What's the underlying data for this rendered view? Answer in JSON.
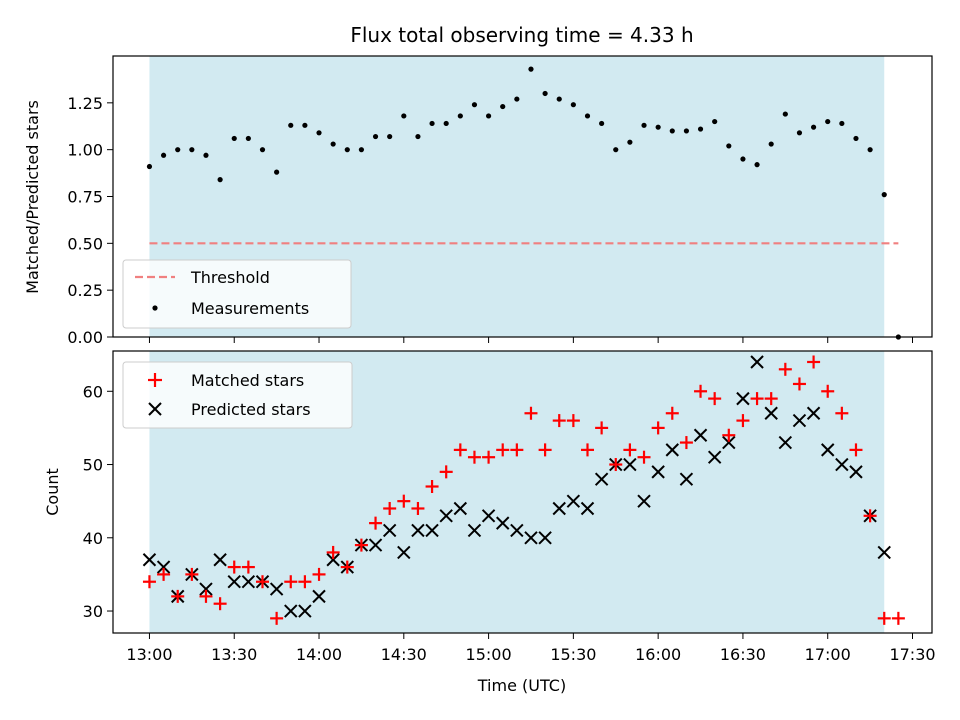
{
  "chart_data": [
    {
      "type": "scatter",
      "title": "Flux total observing time = 4.33 h",
      "xlabel": "",
      "ylabel": "Matched/Predicted stars",
      "ylim": [
        0.0,
        1.5
      ],
      "yticks": [
        "0.00",
        "0.25",
        "0.50",
        "0.75",
        "1.00",
        "1.25"
      ],
      "legend_placement": "lower-left",
      "observing_window": [
        "13:00",
        "17:20"
      ],
      "colors": {
        "window": "#add8e6",
        "threshold": "#f08080",
        "measurements": "#000000"
      },
      "threshold": {
        "name": "Threshold",
        "value": 0.5,
        "x_range": [
          "13:00",
          "17:25"
        ]
      },
      "series": [
        {
          "name": "Measurements",
          "x": [
            "13:00",
            "13:05",
            "13:10",
            "13:15",
            "13:20",
            "13:25",
            "13:30",
            "13:35",
            "13:40",
            "13:45",
            "13:50",
            "13:55",
            "14:00",
            "14:05",
            "14:10",
            "14:15",
            "14:20",
            "14:25",
            "14:30",
            "14:35",
            "14:40",
            "14:45",
            "14:50",
            "14:55",
            "15:00",
            "15:05",
            "15:10",
            "15:15",
            "15:20",
            "15:25",
            "15:30",
            "15:35",
            "15:40",
            "15:45",
            "15:50",
            "15:55",
            "16:00",
            "16:05",
            "16:10",
            "16:15",
            "16:20",
            "16:25",
            "16:30",
            "16:35",
            "16:40",
            "16:45",
            "16:50",
            "16:55",
            "17:00",
            "17:05",
            "17:10",
            "17:15",
            "17:20",
            "17:25"
          ],
          "y": [
            0.91,
            0.97,
            1.0,
            1.0,
            0.97,
            0.84,
            1.06,
            1.06,
            1.0,
            0.88,
            1.13,
            1.13,
            1.09,
            1.03,
            1.0,
            1.0,
            1.07,
            1.07,
            1.18,
            1.07,
            1.14,
            1.14,
            1.18,
            1.24,
            1.18,
            1.23,
            1.27,
            1.43,
            1.3,
            1.27,
            1.24,
            1.18,
            1.14,
            1.0,
            1.04,
            1.13,
            1.12,
            1.1,
            1.1,
            1.11,
            1.15,
            1.02,
            0.95,
            0.92,
            1.03,
            1.19,
            1.09,
            1.12,
            1.15,
            1.14,
            1.06,
            1.0,
            0.76,
            0.0
          ]
        }
      ]
    },
    {
      "type": "scatter",
      "title": "",
      "xlabel": "Time (UTC)",
      "ylabel": "Count",
      "ylim": [
        27.0,
        65.5
      ],
      "yticks": [
        "30",
        "40",
        "50",
        "60"
      ],
      "xticks": [
        "13:00",
        "13:30",
        "14:00",
        "14:30",
        "15:00",
        "15:30",
        "16:00",
        "16:30",
        "17:00",
        "17:30"
      ],
      "legend_placement": "upper-left",
      "colors": {
        "matched": "#ff0000",
        "predicted": "#000000"
      },
      "series": [
        {
          "name": "Matched stars",
          "x": [
            "13:00",
            "13:05",
            "13:10",
            "13:15",
            "13:20",
            "13:25",
            "13:30",
            "13:35",
            "13:40",
            "13:45",
            "13:50",
            "13:55",
            "14:00",
            "14:05",
            "14:10",
            "14:15",
            "14:20",
            "14:25",
            "14:30",
            "14:35",
            "14:40",
            "14:45",
            "14:50",
            "14:55",
            "15:00",
            "15:05",
            "15:10",
            "15:15",
            "15:20",
            "15:25",
            "15:30",
            "15:35",
            "15:40",
            "15:45",
            "15:50",
            "15:55",
            "16:00",
            "16:05",
            "16:10",
            "16:15",
            "16:20",
            "16:25",
            "16:30",
            "16:35",
            "16:40",
            "16:45",
            "16:50",
            "16:55",
            "17:00",
            "17:05",
            "17:10",
            "17:15",
            "17:20",
            "17:25"
          ],
          "y": [
            34,
            35,
            32,
            35,
            32,
            31,
            36,
            36,
            34,
            29,
            34,
            34,
            35,
            38,
            36,
            39,
            42,
            44,
            45,
            44,
            47,
            49,
            52,
            51,
            51,
            52,
            52,
            57,
            52,
            56,
            56,
            52,
            55,
            50,
            52,
            51,
            55,
            57,
            53,
            60,
            59,
            54,
            56,
            59,
            59,
            63,
            61,
            64,
            60,
            57,
            52,
            43,
            29,
            29
          ]
        },
        {
          "name": "Predicted stars",
          "x": [
            "13:00",
            "13:05",
            "13:10",
            "13:15",
            "13:20",
            "13:25",
            "13:30",
            "13:35",
            "13:40",
            "13:45",
            "13:50",
            "13:55",
            "14:00",
            "14:05",
            "14:10",
            "14:15",
            "14:20",
            "14:25",
            "14:30",
            "14:35",
            "14:40",
            "14:45",
            "14:50",
            "14:55",
            "15:00",
            "15:05",
            "15:10",
            "15:15",
            "15:20",
            "15:25",
            "15:30",
            "15:35",
            "15:40",
            "15:45",
            "15:50",
            "15:55",
            "16:00",
            "16:05",
            "16:10",
            "16:15",
            "16:20",
            "16:25",
            "16:30",
            "16:35",
            "16:40",
            "16:45",
            "16:50",
            "16:55",
            "17:00",
            "17:05",
            "17:10",
            "17:15",
            "17:20"
          ],
          "y": [
            37,
            36,
            32,
            35,
            33,
            37,
            34,
            34,
            34,
            33,
            30,
            30,
            32,
            37,
            36,
            39,
            39,
            41,
            38,
            41,
            41,
            43,
            44,
            41,
            43,
            42,
            41,
            40,
            40,
            44,
            45,
            44,
            48,
            50,
            50,
            45,
            49,
            52,
            48,
            54,
            51,
            53,
            59,
            64,
            57,
            53,
            56,
            57,
            52,
            50,
            49,
            43,
            38
          ]
        }
      ]
    }
  ]
}
